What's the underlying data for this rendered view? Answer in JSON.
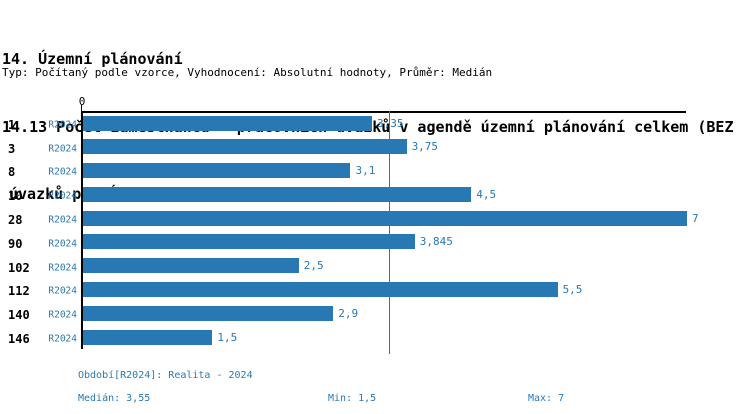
{
  "colors": {
    "accent": "#2878b4",
    "axis": "#000000",
    "text": "#000000"
  },
  "header": {
    "title_line1": "14. Územní plánování",
    "title_line2": "14.13 Počet zaměstnanců - pracovních úvazků v agendě územní plánování celkem (BEZ",
    "title_line3": "úvazků pro ÚAP)",
    "subtitle": "Typ: Počítaný podle vzorce, Vyhodnocení: Absolutní hodnoty, Průměr: Medián"
  },
  "chart_data": {
    "type": "bar",
    "orientation": "horizontal",
    "title": "14.13 Počet zaměstnanců - pracovních úvazků v agendě územní plánování celkem (BEZ úvazků pro ÚAP)",
    "categories": [
      "1",
      "3",
      "8",
      "10",
      "28",
      "90",
      "102",
      "112",
      "140",
      "146"
    ],
    "series": [
      {
        "name": "R2024",
        "values": [
          3.35,
          3.75,
          3.1,
          4.5,
          7,
          3.845,
          2.5,
          5.5,
          2.9,
          1.5
        ],
        "value_labels": [
          "3,35",
          "3,75",
          "3,1",
          "4,5",
          "7",
          "3,845",
          "2,5",
          "5,5",
          "2,9",
          "1,5"
        ]
      }
    ],
    "xlim": [
      0,
      7
    ],
    "x_tick_labels": [
      "0"
    ],
    "median_line_value": 3.55,
    "grid": false,
    "legend": false
  },
  "footer": {
    "period": "Období[R2024]: Realita - 2024",
    "median": "Medián: 3,55",
    "min": "Min: 1,5",
    "max": "Max: 7"
  }
}
